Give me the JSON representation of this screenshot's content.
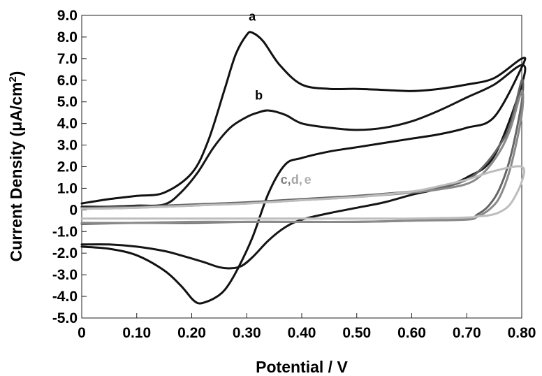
{
  "chart_data": {
    "type": "line",
    "title": "",
    "xlabel": "Potential / V",
    "ylabel_prefix": "Current Density (μA/cm",
    "ylabel_sup": "2",
    "ylabel_suffix": ")",
    "xlim": [
      0,
      0.8
    ],
    "ylim": [
      -5,
      9
    ],
    "grid": false,
    "x_ticks": [
      {
        "value": 0,
        "label": "0"
      },
      {
        "value": 0.1,
        "label": "0.10"
      },
      {
        "value": 0.2,
        "label": "0.20"
      },
      {
        "value": 0.3,
        "label": "0.30"
      },
      {
        "value": 0.4,
        "label": "0.40"
      },
      {
        "value": 0.5,
        "label": "0.50"
      },
      {
        "value": 0.6,
        "label": "0.60"
      },
      {
        "value": 0.7,
        "label": "0.70"
      },
      {
        "value": 0.8,
        "label": "0.80"
      }
    ],
    "y_ticks": [
      {
        "value": 9,
        "label": "9.0"
      },
      {
        "value": 8,
        "label": "8.0"
      },
      {
        "value": 7,
        "label": "7.0"
      },
      {
        "value": 6,
        "label": "6.0"
      },
      {
        "value": 5,
        "label": "5.0"
      },
      {
        "value": 4,
        "label": "4.0"
      },
      {
        "value": 3,
        "label": "3.0"
      },
      {
        "value": 2,
        "label": "2.0"
      },
      {
        "value": 1,
        "label": "1.0"
      },
      {
        "value": 0,
        "label": "0"
      },
      {
        "value": -1,
        "label": "-1.0"
      },
      {
        "value": -2,
        "label": "-2.0"
      },
      {
        "value": -3,
        "label": "-3.0"
      },
      {
        "value": -4,
        "label": "-4.0"
      },
      {
        "value": -5,
        "label": "-5.0"
      }
    ],
    "series": [
      {
        "id": "a",
        "color": "#111111",
        "x": [
          0,
          0.05,
          0.1,
          0.15,
          0.2,
          0.23,
          0.26,
          0.28,
          0.3,
          0.31,
          0.33,
          0.36,
          0.4,
          0.45,
          0.5,
          0.55,
          0.6,
          0.65,
          0.7,
          0.75,
          0.8,
          0.8,
          0.75,
          0.7,
          0.65,
          0.6,
          0.55,
          0.5,
          0.45,
          0.4,
          0.37,
          0.34,
          0.31,
          0.28,
          0.26,
          0.24,
          0.22,
          0.21,
          0.2,
          0.18,
          0.15,
          0.1,
          0.05,
          0
        ],
        "y": [
          0.3,
          0.5,
          0.65,
          0.8,
          1.7,
          3.2,
          5.6,
          7.2,
          8.1,
          8.2,
          7.8,
          6.7,
          5.8,
          5.6,
          5.6,
          5.55,
          5.5,
          5.6,
          5.8,
          6.1,
          7.0,
          6.6,
          4.3,
          3.8,
          3.5,
          3.3,
          3.1,
          2.9,
          2.7,
          2.4,
          2.1,
          0.8,
          -1.3,
          -2.9,
          -3.7,
          -4.1,
          -4.3,
          -4.3,
          -4.1,
          -3.5,
          -2.8,
          -2.1,
          -1.8,
          -1.7
        ]
      },
      {
        "id": "b",
        "color": "#151515",
        "x": [
          0,
          0.05,
          0.1,
          0.15,
          0.18,
          0.21,
          0.24,
          0.27,
          0.3,
          0.32,
          0.34,
          0.37,
          0.4,
          0.45,
          0.5,
          0.55,
          0.6,
          0.65,
          0.7,
          0.75,
          0.8,
          0.8,
          0.75,
          0.7,
          0.65,
          0.6,
          0.55,
          0.5,
          0.45,
          0.4,
          0.37,
          0.34,
          0.31,
          0.29,
          0.27,
          0.25,
          0.22,
          0.18,
          0.15,
          0.1,
          0.05,
          0
        ],
        "y": [
          0.15,
          0.15,
          0.2,
          0.25,
          0.8,
          1.7,
          2.9,
          3.8,
          4.3,
          4.5,
          4.6,
          4.4,
          4.0,
          3.8,
          3.7,
          3.8,
          4.1,
          4.6,
          5.2,
          5.8,
          6.7,
          5.8,
          2.5,
          1.5,
          1.0,
          0.7,
          0.35,
          0.1,
          -0.15,
          -0.45,
          -0.8,
          -1.4,
          -2.2,
          -2.6,
          -2.7,
          -2.65,
          -2.4,
          -2.1,
          -1.9,
          -1.7,
          -1.6,
          -1.6
        ]
      },
      {
        "id": "c",
        "color": "#666666",
        "x": [
          0,
          0.1,
          0.2,
          0.3,
          0.4,
          0.5,
          0.6,
          0.65,
          0.7,
          0.73,
          0.76,
          0.78,
          0.8,
          0.8,
          0.78,
          0.76,
          0.74,
          0.72,
          0.7,
          0.6,
          0.5,
          0.4,
          0.3,
          0.2,
          0.1,
          0
        ],
        "y": [
          0.1,
          0.15,
          0.25,
          0.35,
          0.5,
          0.65,
          0.85,
          1.0,
          1.4,
          2.0,
          3.0,
          4.0,
          6.0,
          5.0,
          2.5,
          1.0,
          0.2,
          -0.2,
          -0.4,
          -0.5,
          -0.55,
          -0.55,
          -0.55,
          -0.6,
          -0.6,
          -0.65
        ]
      },
      {
        "id": "d",
        "color": "#8a8a8a",
        "x": [
          0,
          0.1,
          0.2,
          0.3,
          0.4,
          0.5,
          0.6,
          0.65,
          0.7,
          0.73,
          0.76,
          0.78,
          0.8,
          0.8,
          0.78,
          0.76,
          0.74,
          0.72,
          0.7,
          0.6,
          0.5,
          0.4,
          0.3,
          0.2,
          0.1,
          0
        ],
        "y": [
          0.05,
          0.1,
          0.2,
          0.3,
          0.45,
          0.6,
          0.8,
          0.95,
          1.2,
          1.7,
          2.7,
          3.8,
          5.5,
          4.4,
          2.0,
          0.6,
          0.0,
          -0.3,
          -0.45,
          -0.5,
          -0.55,
          -0.55,
          -0.55,
          -0.55,
          -0.6,
          -0.6
        ]
      },
      {
        "id": "e",
        "color": "#bdbdbd",
        "x": [
          0,
          0.1,
          0.2,
          0.3,
          0.4,
          0.5,
          0.6,
          0.65,
          0.7,
          0.75,
          0.8,
          0.8,
          0.78,
          0.76,
          0.74,
          0.72,
          0.7,
          0.6,
          0.5,
          0.4,
          0.3,
          0.2,
          0.1,
          0
        ],
        "y": [
          0.05,
          0.1,
          0.2,
          0.3,
          0.45,
          0.6,
          0.85,
          1.1,
          1.4,
          1.8,
          2.0,
          1.3,
          0.3,
          -0.1,
          -0.25,
          -0.3,
          -0.35,
          -0.4,
          -0.4,
          -0.4,
          -0.4,
          -0.4,
          -0.4,
          -0.4
        ]
      }
    ],
    "annotations": [
      {
        "text": "a",
        "x": 0.31,
        "y": 8.75,
        "color": "#000000"
      },
      {
        "text": "b",
        "x": 0.322,
        "y": 5.1,
        "color": "#000000"
      },
      {
        "text": "c,",
        "x": 0.371,
        "y": 1.2,
        "color": "#808080"
      },
      {
        "text": "d,",
        "x": 0.391,
        "y": 1.2,
        "color": "#a6a6a6"
      },
      {
        "text": "e",
        "x": 0.411,
        "y": 1.2,
        "color": "#b0b0b0"
      }
    ]
  }
}
